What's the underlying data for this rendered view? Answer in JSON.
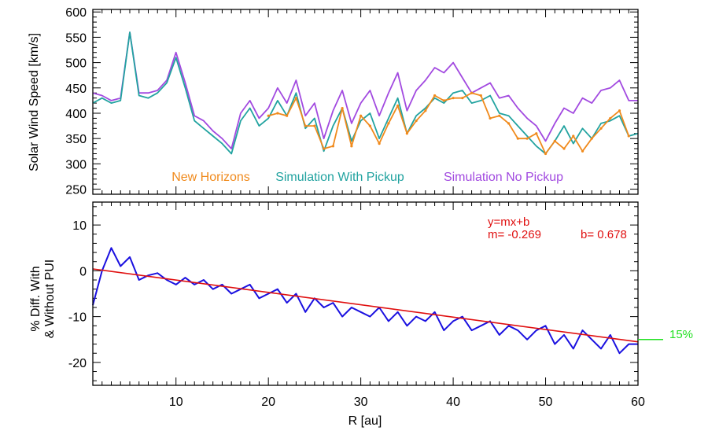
{
  "chart_data": [
    {
      "type": "line",
      "panel": "top",
      "ylabel": "Solar Wind Speed [km/s]",
      "xlim": [
        1,
        60
      ],
      "ylim": [
        240,
        605
      ],
      "yticks": [
        250,
        300,
        350,
        400,
        450,
        500,
        550,
        600
      ],
      "ytick_labels": [
        "250",
        "300",
        "350",
        "400",
        "450",
        "500",
        "550",
        "600"
      ],
      "legend": [
        "New Horizons",
        "Simulation With Pickup",
        "Simulation No Pickup"
      ],
      "legend_placement": "bottom",
      "series": [
        {
          "name": "New Horizons",
          "color": "#f08a1c",
          "x": [
            20,
            21,
            22,
            23,
            24,
            25,
            26,
            27,
            28,
            29,
            30,
            31,
            32,
            33,
            34,
            35,
            36,
            37,
            38,
            39,
            40,
            41,
            42,
            43,
            44,
            45,
            46,
            47,
            48,
            49,
            50,
            51,
            52,
            53,
            54,
            55,
            56,
            57,
            58,
            59
          ],
          "values": [
            395,
            400,
            395,
            430,
            375,
            375,
            330,
            335,
            410,
            335,
            395,
            375,
            340,
            380,
            415,
            360,
            385,
            405,
            435,
            425,
            430,
            430,
            440,
            435,
            390,
            395,
            380,
            350,
            350,
            360,
            320,
            345,
            330,
            355,
            325,
            350,
            370,
            390,
            405,
            355
          ]
        },
        {
          "name": "Simulation With Pickup",
          "color": "#22a3a0",
          "x": [
            1,
            2,
            3,
            4,
            5,
            6,
            7,
            8,
            9,
            10,
            11,
            12,
            13,
            14,
            15,
            16,
            17,
            18,
            19,
            20,
            21,
            22,
            23,
            24,
            25,
            26,
            27,
            28,
            29,
            30,
            31,
            32,
            33,
            34,
            35,
            36,
            37,
            38,
            39,
            40,
            41,
            42,
            43,
            44,
            45,
            46,
            47,
            48,
            49,
            50,
            51,
            52,
            53,
            54,
            55,
            56,
            57,
            58,
            59,
            60
          ],
          "values": [
            420,
            430,
            420,
            425,
            560,
            435,
            430,
            440,
            460,
            510,
            450,
            385,
            370,
            355,
            340,
            320,
            385,
            410,
            375,
            390,
            425,
            395,
            440,
            370,
            390,
            325,
            375,
            410,
            345,
            385,
            400,
            350,
            390,
            430,
            360,
            395,
            410,
            430,
            420,
            440,
            445,
            420,
            425,
            435,
            400,
            395,
            375,
            355,
            335,
            320,
            345,
            375,
            340,
            370,
            350,
            380,
            385,
            395,
            355,
            360
          ]
        },
        {
          "name": "Simulation No Pickup",
          "color": "#a24ae0",
          "x": [
            1,
            2,
            3,
            4,
            5,
            6,
            7,
            8,
            9,
            10,
            11,
            12,
            13,
            14,
            15,
            16,
            17,
            18,
            19,
            20,
            21,
            22,
            23,
            24,
            25,
            26,
            27,
            28,
            29,
            30,
            31,
            32,
            33,
            34,
            35,
            36,
            37,
            38,
            39,
            40,
            41,
            42,
            43,
            44,
            45,
            46,
            47,
            48,
            49,
            50,
            51,
            52,
            53,
            54,
            55,
            56,
            57,
            58,
            59,
            60
          ],
          "values": [
            440,
            435,
            425,
            430,
            560,
            440,
            440,
            445,
            465,
            520,
            460,
            395,
            385,
            365,
            350,
            330,
            400,
            425,
            390,
            410,
            450,
            420,
            465,
            395,
            420,
            350,
            405,
            445,
            380,
            420,
            445,
            395,
            440,
            480,
            405,
            445,
            465,
            490,
            480,
            500,
            470,
            440,
            450,
            460,
            430,
            435,
            410,
            390,
            375,
            345,
            380,
            410,
            400,
            430,
            420,
            445,
            450,
            465,
            425,
            425
          ]
        }
      ]
    },
    {
      "type": "line",
      "panel": "bottom",
      "ylabel": [
        "% Diff. With",
        "& Without PUI"
      ],
      "xlabel": "R [au]",
      "xlim": [
        1,
        60
      ],
      "ylim": [
        -25,
        15
      ],
      "xticks": [
        10,
        20,
        30,
        40,
        50,
        60
      ],
      "xtick_labels": [
        "10",
        "20",
        "30",
        "40",
        "50",
        "60"
      ],
      "yticks": [
        -20,
        -10,
        0,
        10
      ],
      "ytick_labels": [
        "-20",
        "-10",
        "0",
        "10"
      ],
      "series": [
        {
          "name": "% difference",
          "color": "#1a10e0",
          "x": [
            1,
            2,
            3,
            4,
            5,
            6,
            7,
            8,
            9,
            10,
            11,
            12,
            13,
            14,
            15,
            16,
            17,
            18,
            19,
            20,
            21,
            22,
            23,
            24,
            25,
            26,
            27,
            28,
            29,
            30,
            31,
            32,
            33,
            34,
            35,
            36,
            37,
            38,
            39,
            40,
            41,
            42,
            43,
            44,
            45,
            46,
            47,
            48,
            49,
            50,
            51,
            52,
            53,
            54,
            55,
            56,
            57,
            58,
            59,
            60
          ],
          "values": [
            -7.5,
            0,
            5,
            1,
            3,
            -2,
            -1,
            -0.5,
            -2,
            -3,
            -1.5,
            -3,
            -2,
            -4,
            -3,
            -5,
            -4,
            -3,
            -6,
            -5,
            -4,
            -7,
            -5,
            -9,
            -6,
            -8,
            -7,
            -10,
            -8,
            -9,
            -10,
            -8,
            -11,
            -9,
            -12,
            -10,
            -11,
            -9,
            -13,
            -11,
            -10,
            -13,
            -12,
            -11,
            -14,
            -12,
            -13,
            -15,
            -13,
            -12,
            -16,
            -14,
            -17,
            -13,
            -15,
            -17,
            -14,
            -18,
            -16,
            -16
          ]
        },
        {
          "name": "fit",
          "color": "#e01010",
          "x": [
            1,
            60
          ],
          "values": [
            0.4,
            -15.5
          ]
        }
      ],
      "annotations": [
        {
          "text": "y=mx+b",
          "color": "#e01010"
        },
        {
          "text": "m= -0.269",
          "color": "#e01010"
        },
        {
          "text": "b= 0.678",
          "color": "#e01010"
        },
        {
          "text": "15%",
          "color": "#22e022",
          "y": -15
        }
      ]
    }
  ]
}
